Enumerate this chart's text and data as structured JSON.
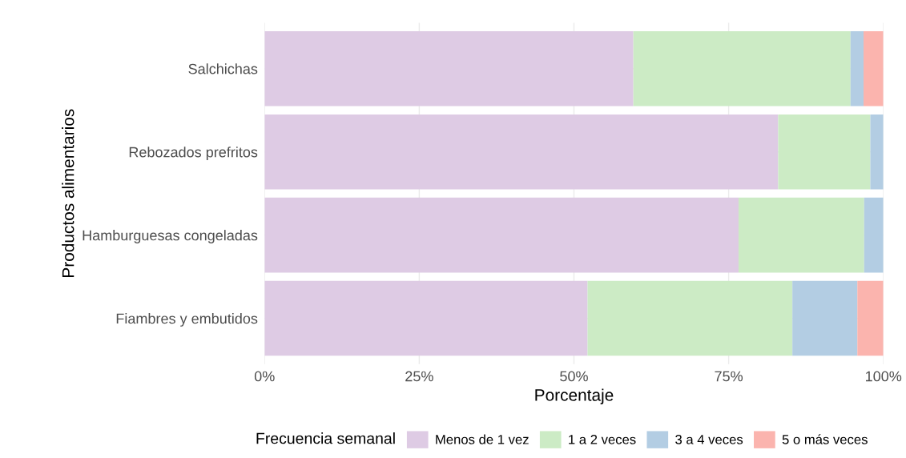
{
  "chart_data": {
    "type": "bar",
    "orientation": "horizontal",
    "stacked": true,
    "categories": [
      "Salchichas",
      "Rebozados prefritos",
      "Hamburguesas congeladas",
      "Fiambres y embutidos"
    ],
    "series": [
      {
        "name": "Menos de 1 vez",
        "color": "#decbe4",
        "values": [
          59.6,
          83.0,
          76.6,
          52.2
        ]
      },
      {
        "name": "1 a 2 veces",
        "color": "#ccebc5",
        "values": [
          35.1,
          14.9,
          20.3,
          33.1
        ]
      },
      {
        "name": "3 a 4 veces",
        "color": "#b3cde3",
        "values": [
          2.1,
          2.1,
          3.1,
          10.5
        ]
      },
      {
        "name": "5 o más veces",
        "color": "#fbb4ae",
        "values": [
          3.2,
          0,
          0,
          4.2
        ]
      }
    ],
    "xlabel": "Porcentaje",
    "ylabel": "Productos alimentarios",
    "legend_title": "Frecuencia semanal",
    "xlim": [
      0,
      100
    ],
    "xticks": [
      {
        "value": 0,
        "label": "0%"
      },
      {
        "value": 25,
        "label": "25%"
      },
      {
        "value": 50,
        "label": "50%"
      },
      {
        "value": 75,
        "label": "75%"
      },
      {
        "value": 100,
        "label": "100%"
      }
    ],
    "grid": true,
    "legend": "bottom"
  }
}
